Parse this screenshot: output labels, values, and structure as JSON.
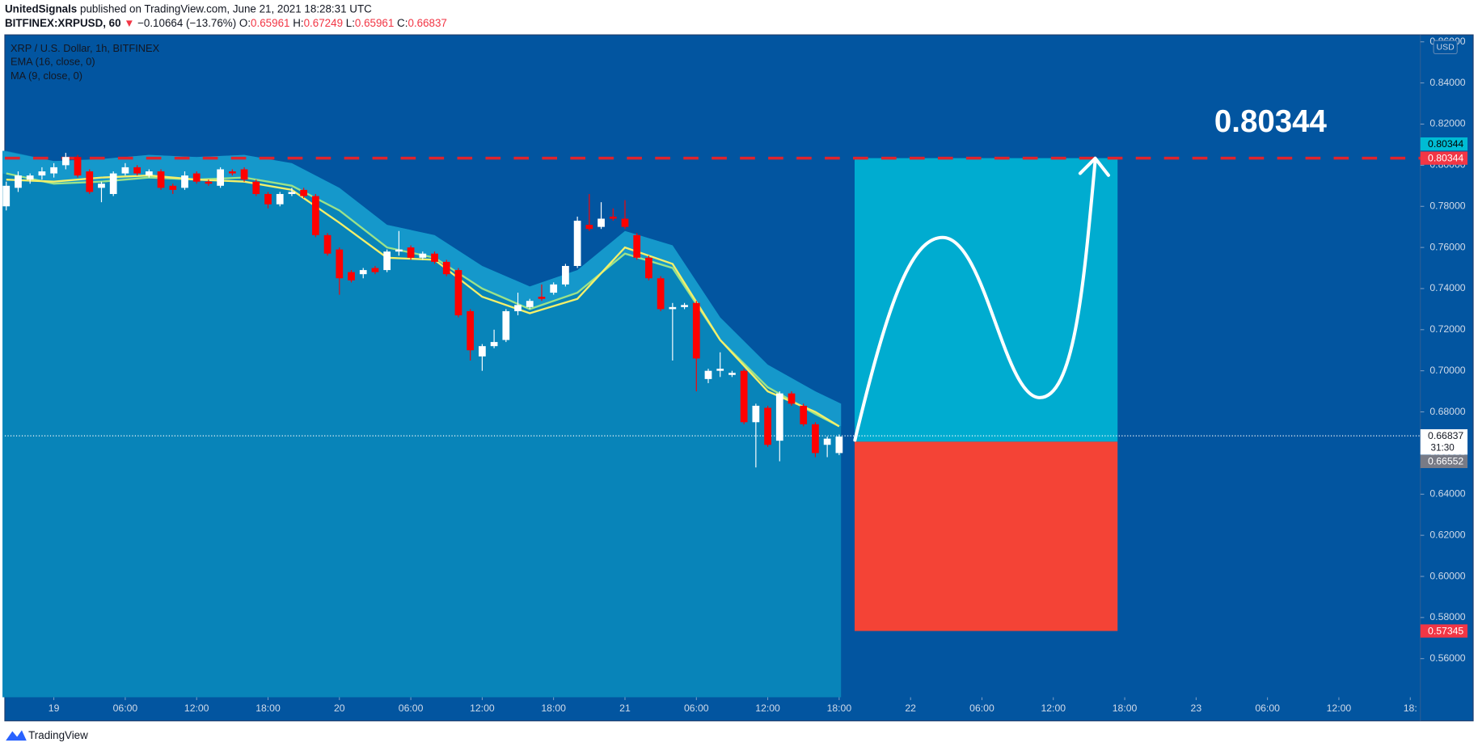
{
  "header": {
    "publisher": "UnitedSignals",
    "published": "published on TradingView.com, June 21, 2021 18:28:31 UTC",
    "symbol": "BITFINEX:XRPUSD, 60",
    "arrow": "▼",
    "change": "−0.10664 (−13.76%)",
    "open_label": "O:",
    "open": "0.65961",
    "high_label": "H:",
    "high": "0.67249",
    "low_label": "L:",
    "low": "0.65961",
    "close_label": "C:",
    "close": "0.66837"
  },
  "footer": {
    "brand": "TradingView"
  },
  "chart_data": {
    "type": "candlestick",
    "title": "XRP / U.S. Dollar, 1h, BITFINEX",
    "currency": "USD",
    "up_color": "#ffffff",
    "down_color": "#ff0000",
    "candles": {
      "x": [
        -4,
        -3,
        -2,
        -1,
        0,
        1,
        2,
        3,
        4,
        5,
        6,
        7,
        8,
        9,
        10,
        11,
        12,
        13,
        14,
        15,
        16,
        17,
        18,
        19,
        20,
        21,
        22,
        23,
        24,
        25,
        26,
        27,
        28,
        29,
        30,
        31,
        32,
        33,
        34,
        35,
        36,
        37,
        38,
        39,
        40,
        41,
        42,
        43,
        44,
        45,
        46,
        47,
        48,
        49,
        50,
        51,
        52,
        53,
        54,
        55,
        56,
        57,
        58,
        59,
        60,
        61,
        62,
        63,
        64,
        65,
        66
      ],
      "open": [
        0.78,
        0.789,
        0.793,
        0.795,
        0.796,
        0.8,
        0.804,
        0.797,
        0.789,
        0.786,
        0.796,
        0.799,
        0.795,
        0.797,
        0.79,
        0.789,
        0.796,
        0.792,
        0.79,
        0.797,
        0.798,
        0.792,
        0.786,
        0.781,
        0.786,
        0.788,
        0.785,
        0.766,
        0.759,
        0.748,
        0.747,
        0.75,
        0.749,
        0.758,
        0.76,
        0.755,
        0.757,
        0.753,
        0.749,
        0.729,
        0.707,
        0.712,
        0.715,
        0.729,
        0.731,
        0.736,
        0.738,
        0.742,
        0.751,
        0.771,
        0.77,
        0.775,
        0.774,
        0.766,
        0.755,
        0.745,
        0.73,
        0.731,
        0.733,
        0.696,
        0.7,
        0.698,
        0.7,
        0.675,
        0.682,
        0.666,
        0.689,
        0.683,
        0.674,
        0.664,
        0.66
      ],
      "high": [
        0.792,
        0.797,
        0.796,
        0.799,
        0.801,
        0.806,
        0.805,
        0.798,
        0.792,
        0.797,
        0.801,
        0.8,
        0.798,
        0.798,
        0.791,
        0.797,
        0.797,
        0.793,
        0.799,
        0.798,
        0.799,
        0.793,
        0.787,
        0.787,
        0.789,
        0.789,
        0.786,
        0.767,
        0.76,
        0.749,
        0.75,
        0.751,
        0.759,
        0.768,
        0.761,
        0.758,
        0.758,
        0.754,
        0.75,
        0.73,
        0.713,
        0.72,
        0.73,
        0.738,
        0.735,
        0.742,
        0.743,
        0.752,
        0.775,
        0.786,
        0.782,
        0.779,
        0.783,
        0.767,
        0.756,
        0.746,
        0.733,
        0.733,
        0.734,
        0.701,
        0.709,
        0.7,
        0.701,
        0.684,
        0.683,
        0.69,
        0.69,
        0.684,
        0.675,
        0.668,
        0.669
      ],
      "low": [
        0.778,
        0.787,
        0.791,
        0.793,
        0.794,
        0.798,
        0.794,
        0.786,
        0.782,
        0.785,
        0.795,
        0.795,
        0.794,
        0.788,
        0.786,
        0.788,
        0.791,
        0.79,
        0.789,
        0.795,
        0.792,
        0.785,
        0.779,
        0.78,
        0.785,
        0.784,
        0.765,
        0.756,
        0.737,
        0.743,
        0.745,
        0.747,
        0.748,
        0.756,
        0.754,
        0.754,
        0.752,
        0.746,
        0.726,
        0.705,
        0.7,
        0.711,
        0.714,
        0.727,
        0.73,
        0.734,
        0.737,
        0.741,
        0.75,
        0.768,
        0.769,
        0.773,
        0.769,
        0.754,
        0.744,
        0.729,
        0.705,
        0.73,
        0.69,
        0.694,
        0.697,
        0.697,
        0.674,
        0.653,
        0.663,
        0.656,
        0.683,
        0.673,
        0.658,
        0.658,
        0.659
      ],
      "close": [
        0.79,
        0.795,
        0.795,
        0.797,
        0.799,
        0.804,
        0.795,
        0.787,
        0.791,
        0.796,
        0.799,
        0.796,
        0.797,
        0.789,
        0.788,
        0.795,
        0.792,
        0.791,
        0.798,
        0.796,
        0.793,
        0.786,
        0.781,
        0.786,
        0.787,
        0.785,
        0.766,
        0.757,
        0.745,
        0.744,
        0.749,
        0.748,
        0.758,
        0.759,
        0.755,
        0.757,
        0.753,
        0.747,
        0.727,
        0.71,
        0.712,
        0.714,
        0.729,
        0.732,
        0.734,
        0.735,
        0.742,
        0.751,
        0.773,
        0.769,
        0.774,
        0.774,
        0.77,
        0.755,
        0.745,
        0.73,
        0.731,
        0.732,
        0.706,
        0.7,
        0.701,
        0.699,
        0.675,
        0.683,
        0.664,
        0.689,
        0.684,
        0.674,
        0.66,
        0.667,
        0.668
      ]
    },
    "series": [
      {
        "name": "EMA (16, close, 0)",
        "color": "#9be28a",
        "x": [
          -4,
          0,
          4,
          8,
          12,
          16,
          20,
          24,
          28,
          32,
          36,
          40,
          44,
          48,
          52,
          56,
          60,
          64,
          66
        ],
        "values": [
          0.796,
          0.791,
          0.792,
          0.794,
          0.793,
          0.794,
          0.79,
          0.778,
          0.76,
          0.755,
          0.74,
          0.73,
          0.738,
          0.757,
          0.75,
          0.715,
          0.692,
          0.679,
          0.673
        ]
      },
      {
        "name": "MA (9, close, 0)",
        "color": "#f4f06a",
        "x": [
          -4,
          0,
          4,
          8,
          12,
          16,
          20,
          24,
          28,
          32,
          36,
          40,
          44,
          48,
          52,
          56,
          60,
          64,
          66
        ],
        "values": [
          0.793,
          0.792,
          0.794,
          0.795,
          0.793,
          0.792,
          0.788,
          0.772,
          0.755,
          0.754,
          0.736,
          0.728,
          0.735,
          0.76,
          0.752,
          0.715,
          0.69,
          0.68,
          0.673
        ]
      }
    ],
    "xlim": [
      -4.12,
      114.85
    ],
    "xticks": [
      {
        "value": 0,
        "label": "19"
      },
      {
        "value": 6,
        "label": "06:00"
      },
      {
        "value": 12,
        "label": "12:00"
      },
      {
        "value": 18,
        "label": "18:00"
      },
      {
        "value": 24,
        "label": "20"
      },
      {
        "value": 30,
        "label": "06:00"
      },
      {
        "value": 36,
        "label": "12:00"
      },
      {
        "value": 42,
        "label": "18:00"
      },
      {
        "value": 48,
        "label": "21"
      },
      {
        "value": 54,
        "label": "06:00"
      },
      {
        "value": 60,
        "label": "12:00"
      },
      {
        "value": 66,
        "label": "18:00"
      },
      {
        "value": 72,
        "label": "22"
      },
      {
        "value": 78,
        "label": "06:00"
      },
      {
        "value": 84,
        "label": "12:00"
      },
      {
        "value": 90,
        "label": "18:00"
      },
      {
        "value": 96,
        "label": "23"
      },
      {
        "value": 102,
        "label": "06:00"
      },
      {
        "value": 108,
        "label": "12:00"
      },
      {
        "value": 114,
        "label": "18:"
      }
    ],
    "ylim": [
      0.5412,
      0.8634
    ],
    "yticks": [
      {
        "value": 0.56,
        "label": "0.56000"
      },
      {
        "value": 0.58,
        "label": "0.58000"
      },
      {
        "value": 0.6,
        "label": "0.60000"
      },
      {
        "value": 0.62,
        "label": "0.62000"
      },
      {
        "value": 0.64,
        "label": "0.64000"
      },
      {
        "value": 0.66,
        "label": "0.66000"
      },
      {
        "value": 0.68,
        "label": "0.68000"
      },
      {
        "value": 0.7,
        "label": "0.70000"
      },
      {
        "value": 0.72,
        "label": "0.72000"
      },
      {
        "value": 0.74,
        "label": "0.74000"
      },
      {
        "value": 0.76,
        "label": "0.76000"
      },
      {
        "value": 0.78,
        "label": "0.78000"
      },
      {
        "value": 0.8,
        "label": "0.80000"
      },
      {
        "value": 0.82,
        "label": "0.82000"
      },
      {
        "value": 0.84,
        "label": "0.84000"
      },
      {
        "value": 0.86,
        "label": "0.86000"
      }
    ],
    "current_price": 0.66837,
    "countdown": "31:30",
    "price_labels": [
      {
        "value": 0.80344,
        "color": "#00bcd4",
        "text_color": "#000000"
      },
      {
        "value": 0.80344,
        "color": "#f23645",
        "text_color": "#ffffff"
      },
      {
        "value": 0.66552,
        "color": "#787b86",
        "text_color": "#ffffff"
      },
      {
        "value": 0.57345,
        "color": "#f23645",
        "text_color": "#ffffff"
      }
    ],
    "target_line": 0.80344,
    "target_line_color": "#e0242c",
    "position": {
      "x_start": 67.3,
      "x_end": 89.4,
      "entry": 0.66552,
      "target": 0.80344,
      "stop": 0.57345,
      "target_color": "#00acd0",
      "stop_color": "#f44336"
    },
    "annotation": "0.80344"
  }
}
